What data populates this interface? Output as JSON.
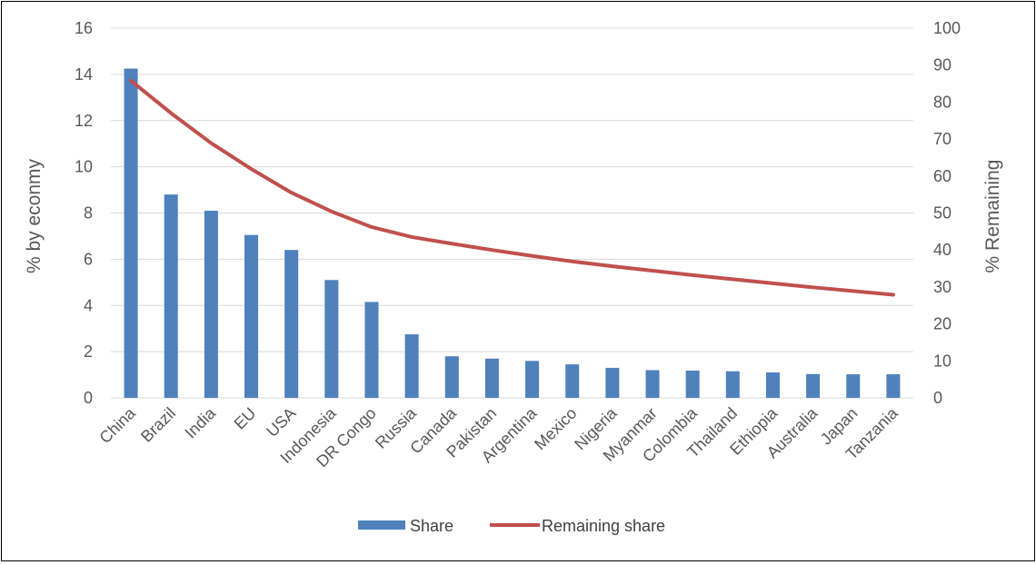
{
  "chart_data": {
    "type": "bar",
    "categories": [
      "China",
      "Brazil",
      "India",
      "EU",
      "USA",
      "Indonesia",
      "DR Congo",
      "Russia",
      "Canada",
      "Pakistan",
      "Argentina",
      "Mexico",
      "Nigeria",
      "Myanmar",
      "Colombia",
      "Thailand",
      "Ethiopia",
      "Australia",
      "Japan",
      "Tanzania"
    ],
    "series": [
      {
        "name": "Share",
        "type": "bar",
        "axis": "left",
        "color": "#4F81BD",
        "values": [
          14.25,
          8.8,
          8.1,
          7.05,
          6.4,
          5.1,
          4.15,
          2.75,
          1.8,
          1.7,
          1.6,
          1.45,
          1.3,
          1.2,
          1.18,
          1.15,
          1.1,
          1.03,
          1.02,
          1.02
        ]
      },
      {
        "name": "Remaining share",
        "type": "line",
        "axis": "right",
        "color": "#C0504D",
        "values": [
          85.8,
          77.0,
          68.9,
          61.9,
          55.5,
          50.4,
          46.2,
          43.5,
          41.7,
          40.0,
          38.4,
          36.9,
          35.6,
          34.4,
          33.2,
          32.1,
          31.0,
          29.9,
          28.9,
          27.9
        ]
      }
    ],
    "ylabel": "% by econmy",
    "y2label": "% Remaining",
    "ylim": [
      0,
      16
    ],
    "y2lim": [
      0,
      100
    ],
    "yticks": [
      "0",
      "2",
      "4",
      "6",
      "8",
      "10",
      "12",
      "14",
      "16"
    ],
    "y2ticks": [
      "0",
      "10",
      "20",
      "30",
      "40",
      "50",
      "60",
      "70",
      "80",
      "90",
      "100"
    ],
    "grid": true,
    "legend_position": "bottom"
  }
}
